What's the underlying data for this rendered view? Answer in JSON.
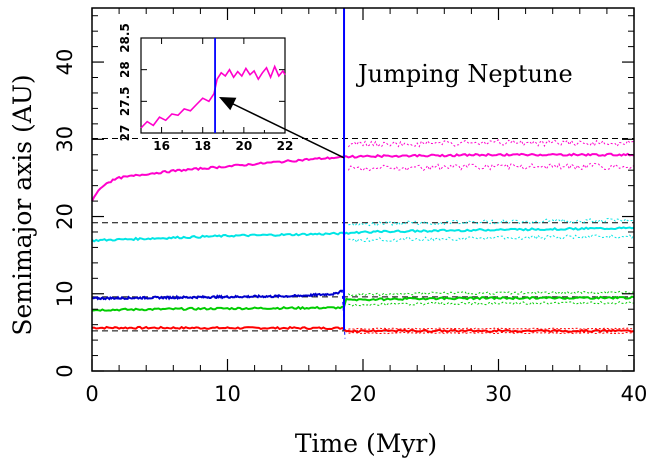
{
  "chart_data": {
    "type": "line",
    "title": "",
    "xlabel": "Time (Myr)",
    "ylabel": "Semimajor axis (AU)",
    "xlim": [
      0,
      40
    ],
    "ylim": [
      0,
      47
    ],
    "xticks": [
      "0",
      "10",
      "20",
      "30",
      "40"
    ],
    "yticks": [
      "0",
      "10",
      "20",
      "30",
      "40"
    ],
    "annotation": "Jumping Neptune",
    "jump_time": 18.6,
    "reference_lines_y": [
      5.2,
      9.6,
      19.2,
      30.1
    ],
    "colors": {
      "red": "#ff0000",
      "green": "#00cc00",
      "blue": "#0000cc",
      "cyan": "#00e5e5",
      "magenta": "#ff00cc",
      "jump_line": "#0000ff"
    },
    "series": [
      {
        "color": "red",
        "x": [
          0,
          18.6,
          18.7,
          40
        ],
        "y": [
          5.6,
          5.55,
          5.2,
          5.2
        ],
        "spread_after": 0.3
      },
      {
        "color": "green",
        "x": [
          0,
          5,
          10,
          18.6,
          18.7,
          25,
          40
        ],
        "y": [
          7.9,
          8.0,
          8.1,
          8.2,
          9.2,
          9.4,
          9.5
        ],
        "spread_after": 0.7
      },
      {
        "color": "blue",
        "x": [
          0,
          5,
          10,
          15,
          18.0,
          18.5
        ],
        "y": [
          9.4,
          9.5,
          9.6,
          9.7,
          10.0,
          10.5
        ],
        "spread_after": 0
      },
      {
        "color": "cyan",
        "x": [
          0,
          5,
          10,
          18.6,
          20,
          30,
          40
        ],
        "y": [
          16.9,
          17.2,
          17.5,
          17.8,
          18.0,
          18.3,
          18.5
        ],
        "spread_after": 1.1
      },
      {
        "color": "magenta",
        "x": [
          0,
          0.3,
          1,
          2,
          4,
          6,
          8,
          10,
          12,
          14,
          16,
          18.6,
          20,
          30,
          40
        ],
        "y": [
          22.0,
          23.0,
          24.3,
          25.0,
          25.5,
          25.9,
          26.2,
          26.5,
          26.8,
          27.1,
          27.4,
          27.7,
          27.8,
          28.0,
          28.0
        ],
        "spread_after": 1.6
      }
    ],
    "inset": {
      "xlim": [
        15,
        22
      ],
      "ylim": [
        27,
        28.5
      ],
      "xticks": [
        "16",
        "18",
        "20",
        "22"
      ],
      "yticks": [
        "27",
        "27.5",
        "28",
        "28.5"
      ],
      "jump_time": 18.6,
      "magenta_x": [
        15.0,
        15.3,
        15.6,
        15.9,
        16.2,
        16.5,
        16.8,
        17.1,
        17.4,
        17.7,
        18.0,
        18.3,
        18.55,
        18.7,
        18.9,
        19.1,
        19.3,
        19.5,
        19.7,
        19.9,
        20.1,
        20.3,
        20.5,
        20.7,
        20.9,
        21.1,
        21.3,
        21.5,
        21.7,
        21.9,
        22.0
      ],
      "magenta_y": [
        27.08,
        27.18,
        27.12,
        27.25,
        27.2,
        27.3,
        27.28,
        27.38,
        27.35,
        27.45,
        27.55,
        27.5,
        27.62,
        27.85,
        27.95,
        27.9,
        28.0,
        27.88,
        27.97,
        27.9,
        28.02,
        27.92,
        27.98,
        27.85,
        27.95,
        28.03,
        27.88,
        28.05,
        27.9,
        27.98,
        27.92
      ]
    }
  }
}
